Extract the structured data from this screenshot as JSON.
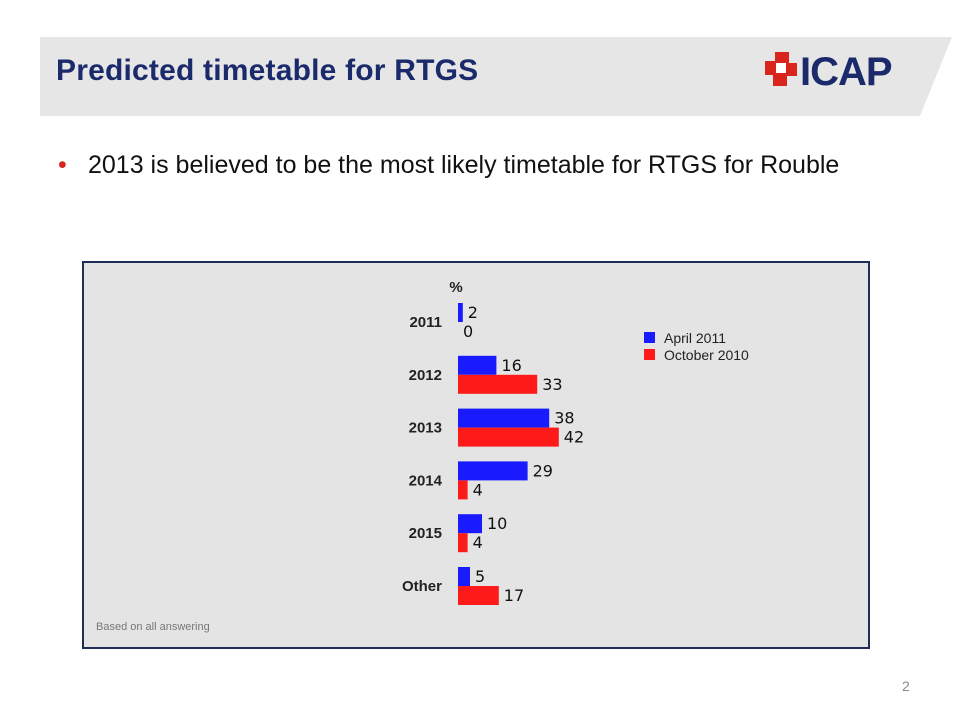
{
  "slide": {
    "title": "Predicted timetable for RTGS",
    "bullet": "2013 is believed to be the most likely timetable for RTGS for Rouble",
    "logo_text": "ICAP",
    "footnote": "Based on all answering",
    "page_number": "2"
  },
  "colors": {
    "title": "#1b2a6b",
    "bullet_dot": "#d9251c",
    "header_band": "#e6e6e6",
    "logo_red": "#d9251c"
  },
  "chart_data": {
    "type": "bar",
    "orientation": "horizontal",
    "unit_label": "%",
    "categories": [
      "2011",
      "2012",
      "2013",
      "2014",
      "2015",
      "Other"
    ],
    "series": [
      {
        "name": "April 2011",
        "color": "#1a1aff",
        "values": [
          2,
          16,
          38,
          29,
          10,
          5
        ]
      },
      {
        "name": "October 2010",
        "color": "#ff1a1a",
        "values": [
          0,
          33,
          42,
          4,
          4,
          17
        ]
      }
    ],
    "legend_position": "top-right",
    "grid": false,
    "xlim": [
      0,
      45
    ]
  }
}
